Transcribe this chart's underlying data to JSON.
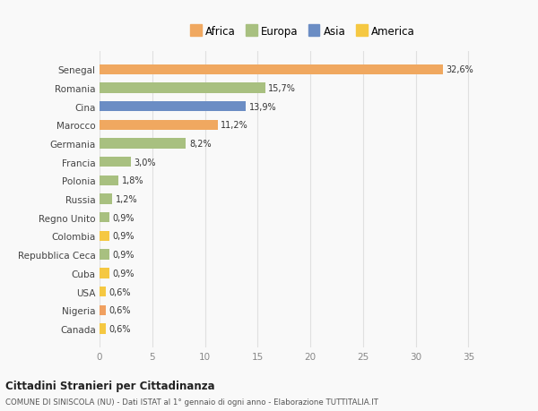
{
  "categories": [
    "Canada",
    "Nigeria",
    "USA",
    "Cuba",
    "Repubblica Ceca",
    "Colombia",
    "Regno Unito",
    "Russia",
    "Polonia",
    "Francia",
    "Germania",
    "Marocco",
    "Cina",
    "Romania",
    "Senegal"
  ],
  "values": [
    0.6,
    0.6,
    0.6,
    0.9,
    0.9,
    0.9,
    0.9,
    1.2,
    1.8,
    3.0,
    8.2,
    11.2,
    13.9,
    15.7,
    32.6
  ],
  "colors": [
    "#f5c842",
    "#f0a060",
    "#f5c842",
    "#f5c842",
    "#a8c080",
    "#f5c842",
    "#a8c080",
    "#a8c080",
    "#a8c080",
    "#a8c080",
    "#a8c080",
    "#f0a860",
    "#6b8dc4",
    "#a8c080",
    "#f0a860"
  ],
  "labels": [
    "0,6%",
    "0,6%",
    "0,6%",
    "0,9%",
    "0,9%",
    "0,9%",
    "0,9%",
    "1,2%",
    "1,8%",
    "3,0%",
    "8,2%",
    "11,2%",
    "13,9%",
    "15,7%",
    "32,6%"
  ],
  "legend_entries": [
    "Africa",
    "Europa",
    "Asia",
    "America"
  ],
  "legend_colors": [
    "#f0a860",
    "#a8c080",
    "#6b8dc4",
    "#f5c842"
  ],
  "xlim": [
    0,
    37
  ],
  "xticks": [
    0,
    5,
    10,
    15,
    20,
    25,
    30,
    35
  ],
  "title": "Cittadini Stranieri per Cittadinanza",
  "subtitle": "COMUNE DI SINISCOLA (NU) - Dati ISTAT al 1° gennaio di ogni anno - Elaborazione TUTTITALIA.IT",
  "bg_color": "#f9f9f9",
  "grid_color": "#e0e0e0"
}
